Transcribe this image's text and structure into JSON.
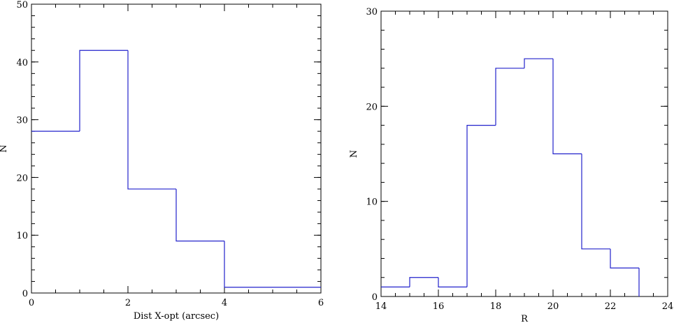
{
  "chart_data": [
    {
      "type": "bar",
      "style": "step-histogram",
      "bin_edges": [
        0,
        1,
        2,
        3,
        4,
        5,
        6
      ],
      "values": [
        28,
        42,
        18,
        9,
        1,
        1
      ],
      "xlabel": "Dist X-opt (arcsec)",
      "ylabel": "N",
      "xlim": [
        0,
        6
      ],
      "ylim": [
        0,
        50
      ],
      "x_ticks": [
        0,
        2,
        4,
        6
      ],
      "x_tick_labels": [
        "0",
        "2",
        "4",
        "6"
      ],
      "x_minor_step": 0.5,
      "y_ticks": [
        0,
        10,
        20,
        30,
        40,
        50
      ],
      "y_tick_labels": [
        "0",
        "10",
        "20",
        "30",
        "40",
        "50"
      ],
      "y_minor_step": 2,
      "line_color": "#2222cc",
      "grid": false
    },
    {
      "type": "bar",
      "style": "step-histogram",
      "bin_edges": [
        14,
        15,
        16,
        17,
        18,
        19,
        20,
        21,
        22,
        23
      ],
      "values": [
        1,
        2,
        1,
        18,
        24,
        25,
        15,
        5,
        3
      ],
      "xlabel": "R",
      "ylabel": "N",
      "xlim": [
        14,
        24
      ],
      "ylim": [
        0,
        30
      ],
      "x_ticks": [
        14,
        16,
        18,
        20,
        22,
        24
      ],
      "x_tick_labels": [
        "14",
        "16",
        "18",
        "20",
        "22",
        "24"
      ],
      "x_minor_step": 0.5,
      "y_ticks": [
        0,
        10,
        20,
        30
      ],
      "y_tick_labels": [
        "0",
        "10",
        "20",
        "30"
      ],
      "y_minor_step": 2,
      "line_color": "#2222cc",
      "grid": false
    }
  ]
}
